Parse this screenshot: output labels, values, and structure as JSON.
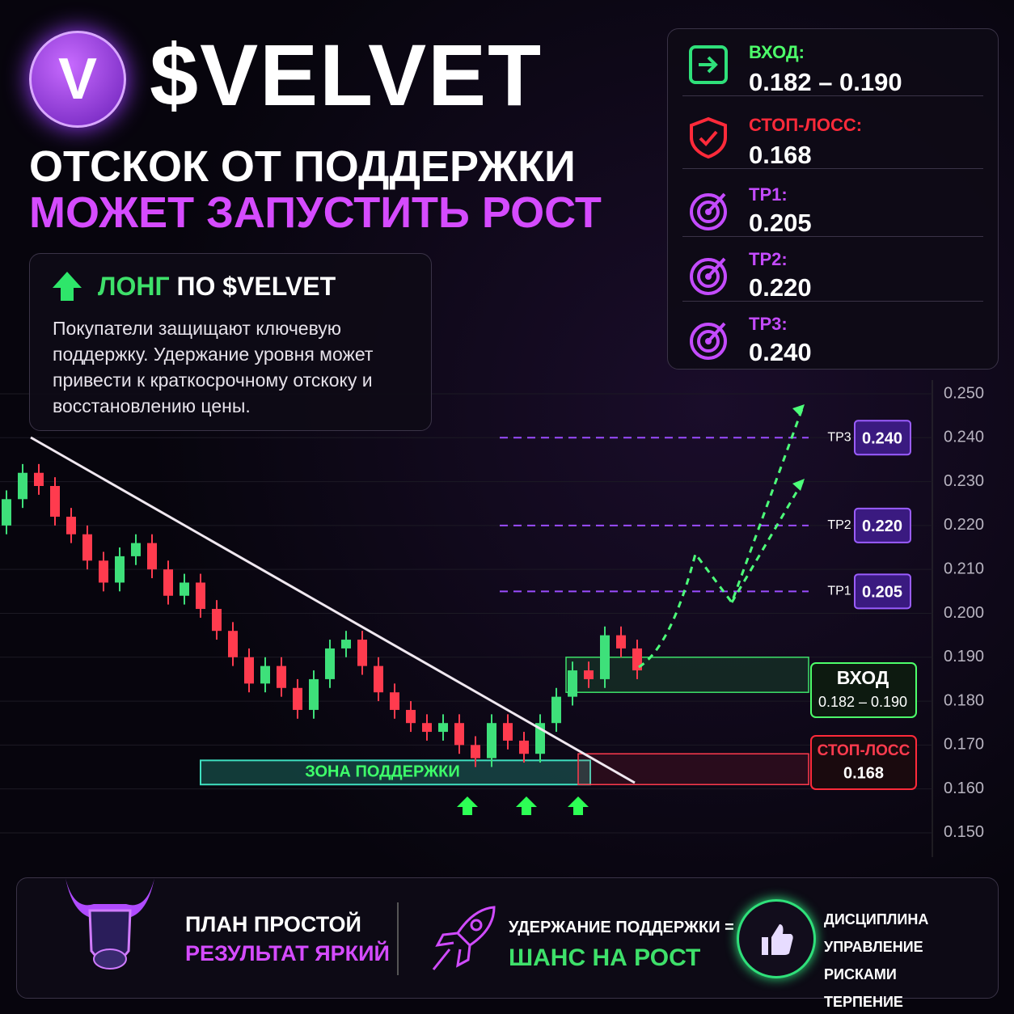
{
  "header": {
    "logo": "V",
    "ticker": "$VELVET",
    "headline1": "ОТСКОК ОТ ПОДДЕРЖКИ",
    "headline2": "МОЖЕТ ЗАПУСТИТЬ РОСТ"
  },
  "info": {
    "long": "ЛОНГ",
    "rest": "ПО $VELVET",
    "text": "Покупатели защищают ключевую поддержку. Удержание уровня может привести к краткосрочному отскоку и восстановлению цены."
  },
  "levels": [
    {
      "label": "ВХОД:",
      "value": "0.182 – 0.190"
    },
    {
      "label": "СТОП-ЛОСС:",
      "value": "0.168"
    },
    {
      "label": "TP1:",
      "value": "0.205"
    },
    {
      "label": "TP2:",
      "value": "0.220"
    },
    {
      "label": "TP3:",
      "value": "0.240"
    }
  ],
  "chart_data": {
    "type": "candlestick",
    "open": [
      0.22,
      0.226,
      0.232,
      0.229,
      0.222,
      0.218,
      0.212,
      0.207,
      0.213,
      0.216,
      0.21,
      0.204,
      0.207,
      0.201,
      0.196,
      0.19,
      0.184,
      0.188,
      0.183,
      0.178,
      0.185,
      0.192,
      0.194,
      0.188,
      0.182,
      0.178,
      0.175,
      0.173,
      0.175,
      0.17,
      0.167,
      0.175,
      0.171,
      0.168,
      0.175,
      0.181,
      0.187,
      0.185,
      0.195,
      0.192
    ],
    "high": [
      0.228,
      0.234,
      0.234,
      0.231,
      0.224,
      0.22,
      0.214,
      0.215,
      0.218,
      0.218,
      0.212,
      0.209,
      0.209,
      0.203,
      0.198,
      0.192,
      0.19,
      0.19,
      0.185,
      0.187,
      0.194,
      0.196,
      0.196,
      0.19,
      0.184,
      0.18,
      0.177,
      0.177,
      0.177,
      0.172,
      0.177,
      0.177,
      0.173,
      0.177,
      0.183,
      0.189,
      0.189,
      0.197,
      0.197,
      0.194
    ],
    "low": [
      0.218,
      0.224,
      0.227,
      0.22,
      0.216,
      0.21,
      0.205,
      0.205,
      0.211,
      0.208,
      0.202,
      0.202,
      0.199,
      0.194,
      0.188,
      0.182,
      0.182,
      0.181,
      0.176,
      0.176,
      0.183,
      0.19,
      0.186,
      0.18,
      0.176,
      0.173,
      0.171,
      0.171,
      0.168,
      0.165,
      0.165,
      0.169,
      0.166,
      0.166,
      0.173,
      0.179,
      0.183,
      0.183,
      0.19,
      0.185
    ],
    "close": [
      0.226,
      0.232,
      0.229,
      0.222,
      0.218,
      0.212,
      0.207,
      0.213,
      0.216,
      0.21,
      0.204,
      0.207,
      0.201,
      0.196,
      0.19,
      0.184,
      0.188,
      0.183,
      0.178,
      0.185,
      0.192,
      0.194,
      0.188,
      0.182,
      0.178,
      0.175,
      0.173,
      0.175,
      0.17,
      0.167,
      0.175,
      0.171,
      0.168,
      0.175,
      0.181,
      0.187,
      0.185,
      0.195,
      0.192,
      0.187
    ],
    "up_color": "#3ee07a",
    "down_color": "#ff3b4e",
    "ylim": [
      0.145,
      0.253
    ],
    "yticks": [
      {
        "value": 0.25,
        "label": "0.250"
      },
      {
        "value": 0.24,
        "label": "0.240"
      },
      {
        "value": 0.23,
        "label": "0.230"
      },
      {
        "value": 0.22,
        "label": "0.220"
      },
      {
        "value": 0.21,
        "label": "0.210"
      },
      {
        "value": 0.2,
        "label": "0.200"
      },
      {
        "value": 0.19,
        "label": "0.190"
      },
      {
        "value": 0.18,
        "label": "0.180"
      },
      {
        "value": 0.17,
        "label": "0.170"
      },
      {
        "value": 0.16,
        "label": "0.160"
      },
      {
        "value": 0.15,
        "label": "0.150"
      }
    ],
    "grid": true,
    "targets": [
      {
        "name": "TP3",
        "value": 0.24,
        "label": "0.240"
      },
      {
        "name": "TP2",
        "value": 0.22,
        "label": "0.220"
      },
      {
        "name": "TP1",
        "value": 0.205,
        "label": "0.205"
      }
    ],
    "entry": {
      "name": "ВХОД",
      "low": 0.182,
      "high": 0.19,
      "label": "0.182 – 0.190"
    },
    "stop": {
      "name": "СТОП-ЛОСС",
      "value": 0.168,
      "label": "0.168"
    },
    "support_zone": {
      "name": "ЗОНА ПОДДЕРЖКИ",
      "low": 0.161,
      "high": 0.1665
    }
  },
  "footer": {
    "plan1": "ПЛАН ПРОСТОЙ",
    "plan2": "РЕЗУЛЬТАТ ЯРКИЙ",
    "hold1": "УДЕРЖАНИЕ ПОДДЕРЖКИ =",
    "hold2": "ШАНС НА РОСТ",
    "list": [
      "ДИСЦИПЛИНА",
      "УПРАВЛЕНИЕ РИСКАМИ",
      "ТЕРПЕНИЕ"
    ]
  }
}
